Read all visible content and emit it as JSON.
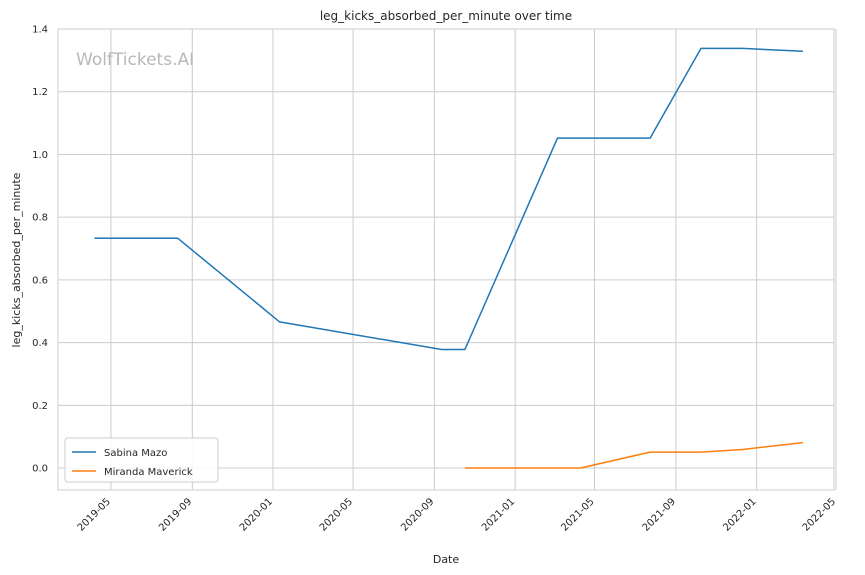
{
  "watermark": "WolfTickets.AI",
  "colors": {
    "series_1": "#1f77b4",
    "series_2": "#ff7f0e",
    "grid": "#cccccc"
  },
  "chart_data": {
    "type": "line",
    "title": "leg_kicks_absorbed_per_minute over time",
    "xlabel": "Date",
    "ylabel": "leg_kicks_absorbed_per_minute",
    "x_scale": "time",
    "xlim": [
      "2019-02-10",
      "2022-04-28"
    ],
    "ylim": [
      -0.07,
      1.4
    ],
    "x_ticks": [
      "2019-05",
      "2019-09",
      "2020-01",
      "2020-05",
      "2020-09",
      "2021-01",
      "2021-05",
      "2021-09",
      "2022-01",
      "2022-05"
    ],
    "y_ticks": [
      "0.0",
      "0.2",
      "0.4",
      "0.6",
      "0.8",
      "1.0",
      "1.2",
      "1.4"
    ],
    "grid": true,
    "legend_position": "lower-left",
    "series": [
      {
        "name": "Sabina Mazo",
        "color": "#1f77b4",
        "x": [
          "2019-04-06",
          "2019-08-10",
          "2020-01-11",
          "2020-09-12",
          "2020-10-17",
          "2021-03-06",
          "2021-07-24",
          "2021-10-09",
          "2021-12-11",
          "2022-03-12"
        ],
        "y": [
          0.733,
          0.733,
          0.466,
          0.378,
          0.378,
          1.052,
          1.052,
          1.338,
          1.338,
          1.329
        ]
      },
      {
        "name": "Miranda Maverick",
        "color": "#ff7f0e",
        "x": [
          "2020-10-17",
          "2021-04-10",
          "2021-07-24",
          "2021-10-09",
          "2021-12-11",
          "2022-03-12"
        ],
        "y": [
          0.0,
          0.0,
          0.051,
          0.051,
          0.059,
          0.081
        ]
      }
    ]
  }
}
